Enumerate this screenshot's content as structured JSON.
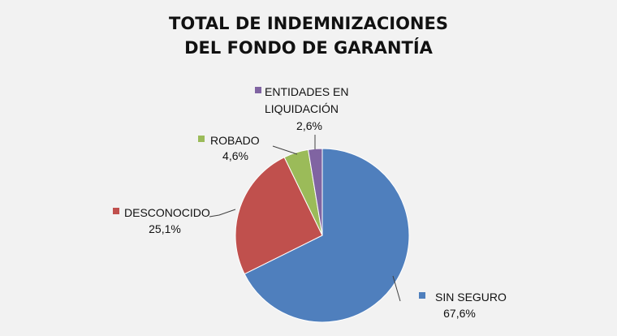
{
  "chart_data": {
    "type": "pie",
    "title_lines": [
      "TOTAL DE INDEMNIZACIONES",
      "DEL FONDO DE GARANTÍA"
    ],
    "slices": [
      {
        "name": "SIN SEGURO",
        "value": 67.6,
        "label": "67,6%",
        "color": "#4f7fbd"
      },
      {
        "name": "DESCONOCIDO",
        "value": 25.1,
        "label": "25,1%",
        "color": "#c0504d"
      },
      {
        "name": "ROBADO",
        "value": 4.6,
        "label": "4,6%",
        "color": "#9bbb59"
      },
      {
        "name": "ENTIDADES EN LIQUIDACIÓN",
        "name_lines": [
          "ENTIDADES EN",
          "LIQUIDACIÓN"
        ],
        "value": 2.6,
        "label": "2,6%",
        "color": "#8064a2"
      }
    ],
    "legend": "data-labels",
    "grid": false
  }
}
